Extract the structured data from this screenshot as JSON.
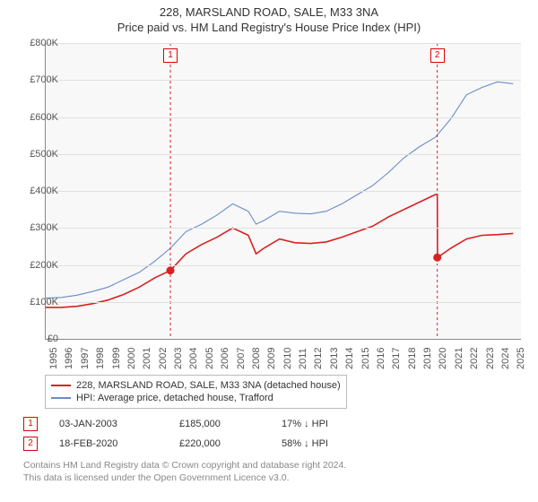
{
  "title": "228, MARSLAND ROAD, SALE, M33 3NA",
  "subtitle": "Price paid vs. HM Land Registry's House Price Index (HPI)",
  "chart": {
    "type": "line",
    "background_color": "#f8f8f8",
    "grid_color": "#e0e0e0",
    "axis_color": "#888888",
    "ylim": [
      0,
      800
    ],
    "ytick_step": 100,
    "ylabel_prefix": "£",
    "ylabel_suffix": "K",
    "yticks": [
      "£0",
      "£100K",
      "£200K",
      "£300K",
      "£400K",
      "£500K",
      "£600K",
      "£700K",
      "£800K"
    ],
    "xlim": [
      1995,
      2025.5
    ],
    "xticks": [
      1995,
      1996,
      1997,
      1998,
      1999,
      2000,
      2001,
      2002,
      2003,
      2004,
      2005,
      2006,
      2007,
      2008,
      2009,
      2010,
      2011,
      2012,
      2013,
      2014,
      2015,
      2016,
      2017,
      2018,
      2019,
      2020,
      2021,
      2022,
      2023,
      2024,
      2025
    ],
    "series": [
      {
        "name": "228, MARSLAND ROAD, SALE, M33 3NA (detached house)",
        "color": "#d92121",
        "line_width": 1.6,
        "data": [
          [
            1995,
            85
          ],
          [
            1996,
            85
          ],
          [
            1997,
            88
          ],
          [
            1998,
            95
          ],
          [
            1999,
            105
          ],
          [
            2000,
            120
          ],
          [
            2001,
            140
          ],
          [
            2002,
            165
          ],
          [
            2003,
            185
          ],
          [
            2004,
            230
          ],
          [
            2005,
            255
          ],
          [
            2006,
            275
          ],
          [
            2007,
            300
          ],
          [
            2008,
            280
          ],
          [
            2008.5,
            230
          ],
          [
            2009,
            245
          ],
          [
            2010,
            270
          ],
          [
            2011,
            260
          ],
          [
            2012,
            258
          ],
          [
            2013,
            262
          ],
          [
            2014,
            275
          ],
          [
            2015,
            290
          ],
          [
            2016,
            305
          ],
          [
            2017,
            330
          ],
          [
            2018,
            350
          ],
          [
            2019,
            370
          ],
          [
            2020,
            390
          ],
          [
            2020.13,
            390
          ],
          [
            2020.14,
            220
          ],
          [
            2021,
            245
          ],
          [
            2022,
            270
          ],
          [
            2023,
            280
          ],
          [
            2024,
            282
          ],
          [
            2025,
            285
          ]
        ]
      },
      {
        "name": "HPI: Average price, detached house, Trafford",
        "color": "#6a8cc7",
        "line_width": 1.1,
        "data": [
          [
            1995,
            110
          ],
          [
            1996,
            112
          ],
          [
            1997,
            118
          ],
          [
            1998,
            128
          ],
          [
            1999,
            140
          ],
          [
            2000,
            160
          ],
          [
            2001,
            180
          ],
          [
            2002,
            210
          ],
          [
            2003,
            245
          ],
          [
            2004,
            290
          ],
          [
            2005,
            310
          ],
          [
            2006,
            335
          ],
          [
            2007,
            365
          ],
          [
            2008,
            345
          ],
          [
            2008.5,
            310
          ],
          [
            2009,
            320
          ],
          [
            2010,
            345
          ],
          [
            2011,
            340
          ],
          [
            2012,
            338
          ],
          [
            2013,
            345
          ],
          [
            2014,
            365
          ],
          [
            2015,
            390
          ],
          [
            2016,
            415
          ],
          [
            2017,
            450
          ],
          [
            2018,
            490
          ],
          [
            2019,
            520
          ],
          [
            2020,
            545
          ],
          [
            2021,
            595
          ],
          [
            2022,
            660
          ],
          [
            2023,
            680
          ],
          [
            2024,
            695
          ],
          [
            2025,
            690
          ]
        ]
      }
    ],
    "markers": [
      {
        "label": "1",
        "x": 2003.0,
        "y": 185
      },
      {
        "label": "2",
        "x": 2020.13,
        "y": 220
      }
    ],
    "marker_line_color": "#d92121",
    "marker_box_border": "#d92121"
  },
  "legend": {
    "items": [
      {
        "color": "#d92121",
        "label": "228, MARSLAND ROAD, SALE, M33 3NA (detached house)"
      },
      {
        "color": "#6a8cc7",
        "label": "HPI: Average price, detached house, Trafford"
      }
    ]
  },
  "events": [
    {
      "label": "1",
      "date": "03-JAN-2003",
      "price": "£185,000",
      "hpi": "17% ↓ HPI"
    },
    {
      "label": "2",
      "date": "18-FEB-2020",
      "price": "£220,000",
      "hpi": "58% ↓ HPI"
    }
  ],
  "footer": {
    "line1": "Contains HM Land Registry data © Crown copyright and database right 2024.",
    "line2": "This data is licensed under the Open Government Licence v3.0."
  }
}
